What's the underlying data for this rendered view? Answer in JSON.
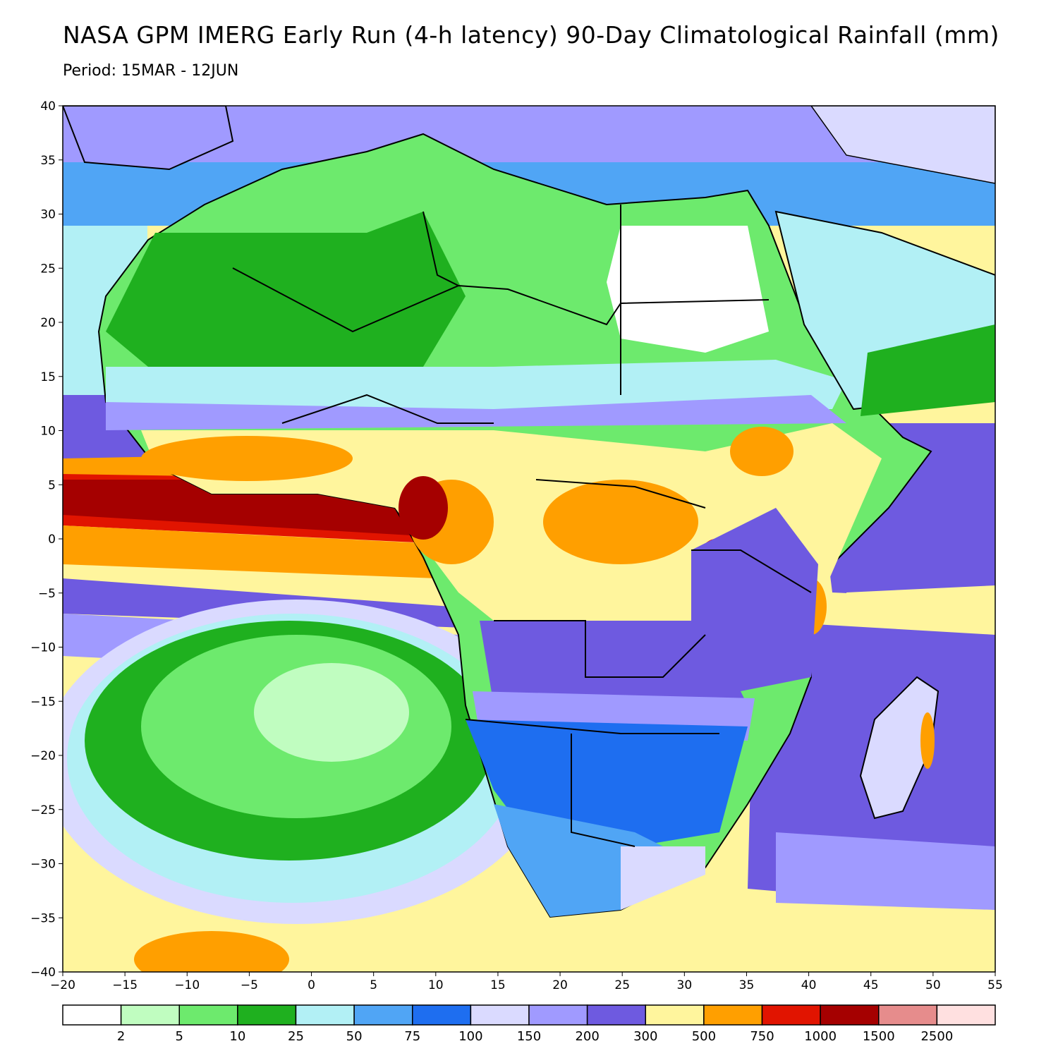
{
  "header": {
    "title": "NASA GPM IMERG Early Run (4-h latency) 90-Day Climatological Rainfall (mm)",
    "subtitle": "Period: 15MAR - 12JUN"
  },
  "map": {
    "lon_range": [
      -20,
      55
    ],
    "lat_range": [
      -40,
      40
    ],
    "x_ticks": [
      "−20",
      "−15",
      "−10",
      "−5",
      "0",
      "5",
      "10",
      "15",
      "20",
      "25",
      "30",
      "35",
      "40",
      "45",
      "50",
      "55"
    ],
    "y_ticks": [
      "40",
      "35",
      "30",
      "25",
      "20",
      "15",
      "10",
      "5",
      "0",
      "−5",
      "−10",
      "−15",
      "−20",
      "−25",
      "−30",
      "−35",
      "−40"
    ],
    "ocean_fill": "#fff59d",
    "land_fill": "#6dea6d",
    "border_color": "#000000",
    "regions": [
      {
        "name": "north-africa-green",
        "color": "#1fb01f"
      },
      {
        "name": "sahara-white",
        "color": "#ffffff"
      },
      {
        "name": "sahel-lightblue",
        "color": "#b2f0f5"
      },
      {
        "name": "west-africa-orange",
        "color": "#ff9f00"
      },
      {
        "name": "gulf-of-guinea-red",
        "color": "#e11400"
      },
      {
        "name": "congo-orange",
        "color": "#ff9f00"
      },
      {
        "name": "southern-africa-blue",
        "color": "#1e6ef0"
      },
      {
        "name": "south-atlantic-green",
        "color": "#6dea6d"
      },
      {
        "name": "indian-ocean-purple",
        "color": "#6e5ae0"
      }
    ]
  },
  "colorbar": {
    "colors": [
      "#ffffff",
      "#c0fdc0",
      "#6dea6d",
      "#1fb01f",
      "#b2f0f5",
      "#50a5f5",
      "#1e6ef0",
      "#dadaff",
      "#a09aff",
      "#6e5ae0",
      "#fff59d",
      "#ff9f00",
      "#e11400",
      "#a50000",
      "#e68c8c",
      "#ffe0e0"
    ],
    "labels": [
      "2",
      "5",
      "10",
      "25",
      "50",
      "75",
      "100",
      "150",
      "200",
      "300",
      "500",
      "750",
      "1000",
      "1500",
      "2500"
    ]
  }
}
